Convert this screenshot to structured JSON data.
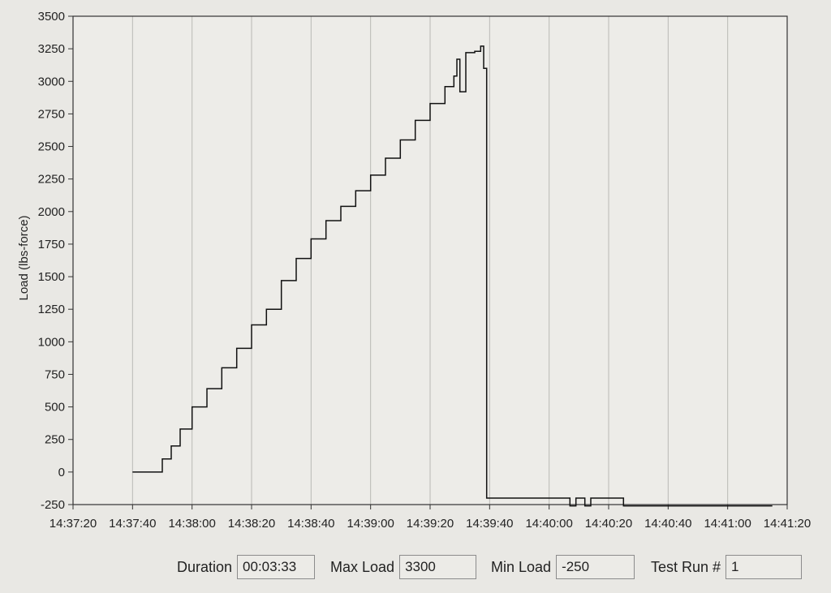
{
  "chart_data": {
    "type": "line",
    "title": "",
    "xlabel": "",
    "ylabel": "Load (lbs-force)",
    "ylim": [
      -250,
      3500
    ],
    "xlim": [
      "14:37:20",
      "14:41:20"
    ],
    "x_ticks": [
      "14:37:20",
      "14:37:40",
      "14:38:00",
      "14:38:20",
      "14:38:40",
      "14:39:00",
      "14:39:20",
      "14:39:40",
      "14:40:00",
      "14:40:20",
      "14:40:40",
      "14:41:00",
      "14:41:20"
    ],
    "y_ticks": [
      -250,
      0,
      250,
      500,
      750,
      1000,
      1250,
      1500,
      1750,
      2000,
      2250,
      2500,
      2750,
      3000,
      3250,
      3500
    ],
    "grid": "vertical",
    "series": [
      {
        "x": [
          "14:37:40",
          "14:37:49",
          "14:37:50",
          "14:37:53",
          "14:37:56",
          "14:38:00",
          "14:38:05",
          "14:38:10",
          "14:38:15",
          "14:38:20",
          "14:38:25",
          "14:38:30",
          "14:38:35",
          "14:38:40",
          "14:38:45",
          "14:38:50",
          "14:38:55",
          "14:39:00",
          "14:39:05",
          "14:39:10",
          "14:39:15",
          "14:39:20",
          "14:39:25",
          "14:39:28",
          "14:39:29",
          "14:39:30",
          "14:39:32",
          "14:39:35",
          "14:39:37",
          "14:39:38",
          "14:39:39",
          "14:40:00",
          "14:40:05",
          "14:40:07",
          "14:40:09",
          "14:40:12",
          "14:40:14",
          "14:40:19",
          "14:40:25",
          "14:41:00",
          "14:41:15"
        ],
        "y": [
          0,
          0,
          100,
          200,
          330,
          500,
          640,
          800,
          950,
          1130,
          1250,
          1470,
          1640,
          1790,
          1930,
          2040,
          2160,
          2280,
          2410,
          2550,
          2700,
          2830,
          2960,
          3040,
          3170,
          2920,
          3220,
          3230,
          3270,
          3100,
          -200,
          -200,
          -200,
          -260,
          -200,
          -260,
          -200,
          -200,
          -260,
          -260,
          -260
        ]
      }
    ]
  },
  "fields": {
    "duration_label": "Duration",
    "duration_value": "00:03:33",
    "max_label": "Max Load",
    "max_value": "3300",
    "min_label": "Min Load",
    "min_value": "-250",
    "run_label": "Test Run #",
    "run_value": "1"
  }
}
